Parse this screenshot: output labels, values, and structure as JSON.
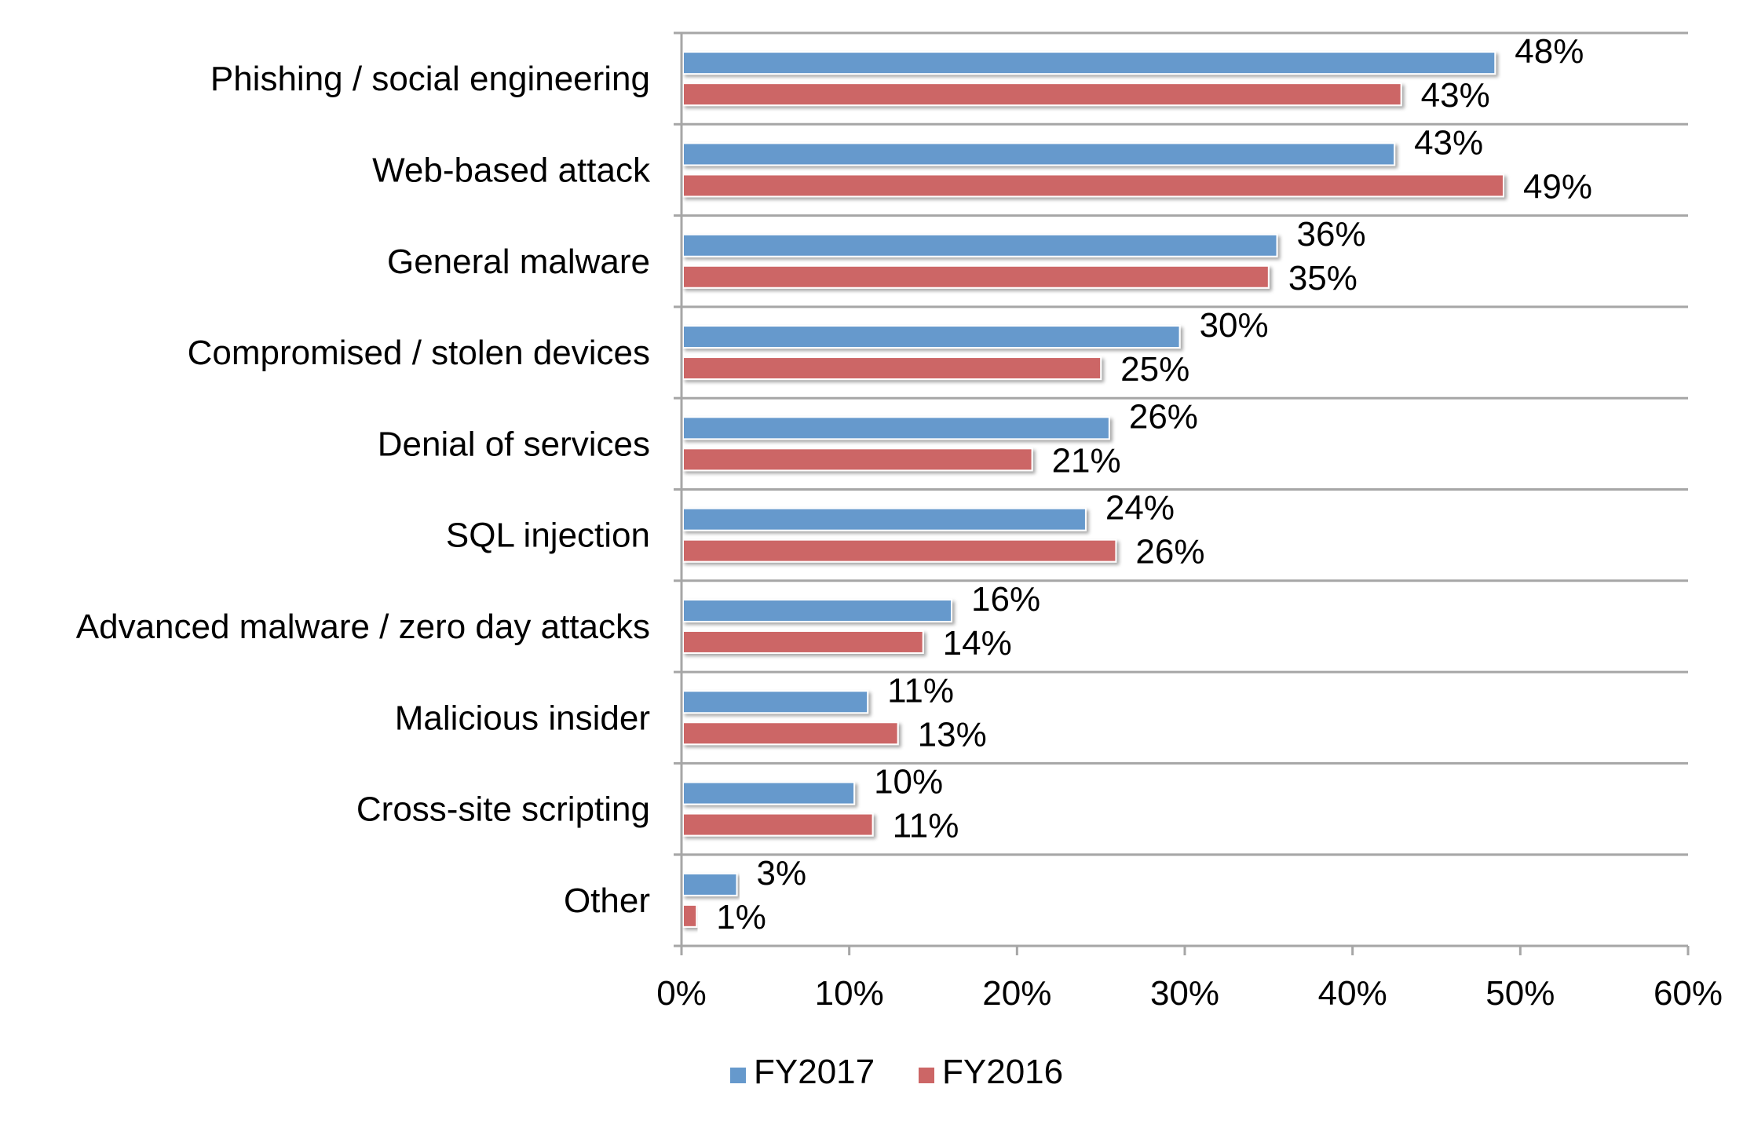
{
  "chart_data": {
    "type": "bar",
    "orientation": "horizontal",
    "categories": [
      "Phishing / social engineering",
      "Web-based attack",
      "General malware",
      "Compromised / stolen devices",
      "Denial of services",
      "SQL injection",
      "Advanced malware / zero day attacks",
      "Malicious insider",
      "Cross-site scripting",
      "Other"
    ],
    "series": [
      {
        "name": "FY2017",
        "color": "#6699cc",
        "values": [
          48.5,
          42.5,
          35.5,
          29.7,
          25.5,
          24.1,
          16.1,
          11.1,
          10.3,
          3.3
        ],
        "labels": [
          "48%",
          "43%",
          "36%",
          "30%",
          "26%",
          "24%",
          "16%",
          "11%",
          "10%",
          "3%"
        ]
      },
      {
        "name": "FY2016",
        "color": "#cc6666",
        "values": [
          42.9,
          49.0,
          35.0,
          25.0,
          20.9,
          25.9,
          14.4,
          12.9,
          11.4,
          0.9
        ],
        "labels": [
          "43%",
          "49%",
          "35%",
          "25%",
          "21%",
          "26%",
          "14%",
          "13%",
          "11%",
          "1%"
        ]
      }
    ],
    "xlim": [
      0,
      60
    ],
    "xticks": [
      "0%",
      "10%",
      "20%",
      "30%",
      "40%",
      "50%",
      "60%"
    ],
    "xlabel": "",
    "ylabel": "",
    "title": "",
    "grid": "horizontal separators",
    "legend": "bottom-center"
  }
}
